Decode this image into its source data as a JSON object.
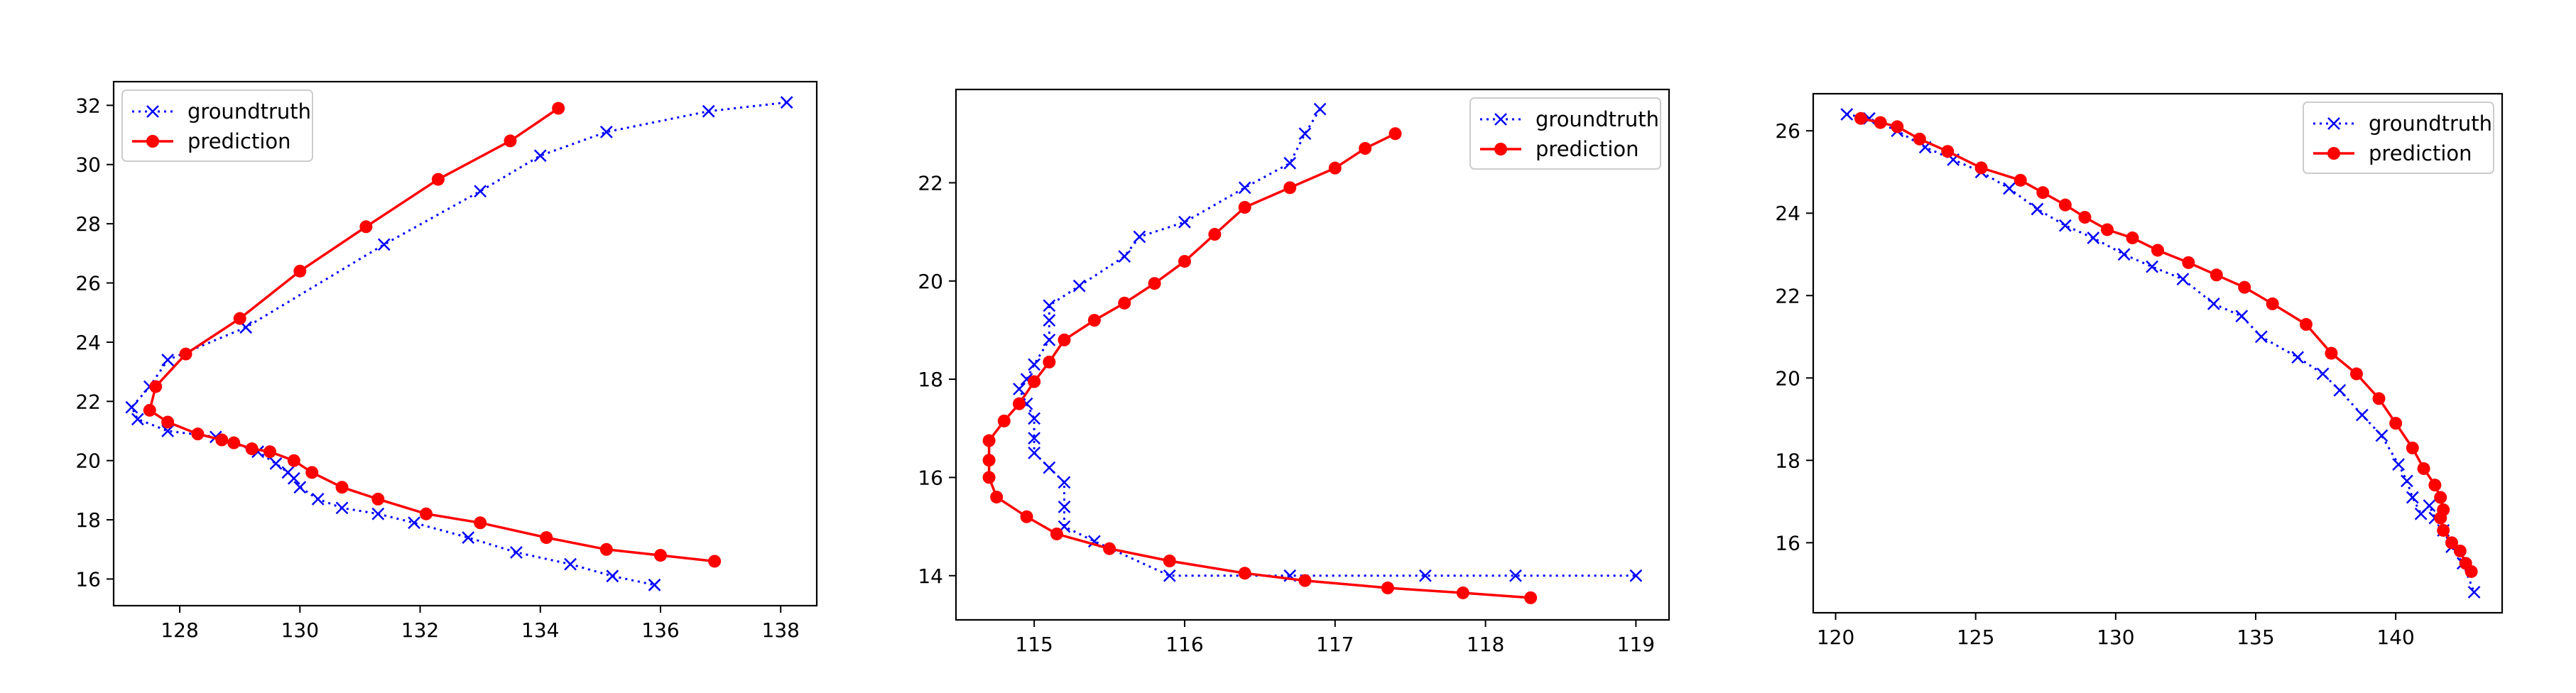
{
  "chart_data": [
    {
      "type": "line",
      "title": "",
      "xlabel": "",
      "ylabel": "",
      "xlim": [
        126.9,
        138.6
      ],
      "ylim": [
        15.1,
        32.8
      ],
      "xticks": [
        128,
        130,
        132,
        134,
        136,
        138
      ],
      "yticks": [
        16,
        18,
        20,
        22,
        24,
        26,
        28,
        30,
        32
      ],
      "grid": false,
      "legend": "top-left",
      "series": [
        {
          "name": "groundtruth",
          "color": "#0000ff",
          "marker": "x",
          "linestyle": "dotted",
          "x": [
            138.1,
            136.8,
            135.1,
            134.0,
            133.0,
            131.4,
            129.1,
            127.8,
            127.5,
            127.2,
            127.3,
            127.8,
            128.6,
            129.3,
            129.6,
            129.8,
            129.9,
            130.0,
            130.3,
            130.7,
            131.3,
            131.9,
            132.8,
            133.6,
            134.5,
            135.2,
            135.9
          ],
          "y": [
            32.1,
            31.8,
            31.1,
            30.3,
            29.1,
            27.3,
            24.5,
            23.4,
            22.5,
            21.8,
            21.4,
            21.0,
            20.8,
            20.3,
            19.9,
            19.6,
            19.4,
            19.1,
            18.7,
            18.4,
            18.2,
            17.9,
            17.4,
            16.9,
            16.5,
            16.1,
            15.8
          ]
        },
        {
          "name": "prediction",
          "color": "#ff0000",
          "marker": "o",
          "linestyle": "solid",
          "x": [
            134.3,
            133.5,
            132.3,
            131.1,
            130.0,
            129.0,
            128.1,
            127.6,
            127.5,
            127.8,
            128.3,
            128.7,
            128.9,
            129.2,
            129.5,
            129.9,
            130.2,
            130.7,
            131.3,
            132.1,
            133.0,
            134.1,
            135.1,
            136.0,
            136.9
          ],
          "y": [
            31.9,
            30.8,
            29.5,
            27.9,
            26.4,
            24.8,
            23.6,
            22.5,
            21.7,
            21.3,
            20.9,
            20.7,
            20.6,
            20.4,
            20.3,
            20.0,
            19.6,
            19.1,
            18.7,
            18.2,
            17.9,
            17.4,
            17.0,
            16.8,
            16.6
          ]
        }
      ]
    },
    {
      "type": "line",
      "title": "",
      "xlabel": "",
      "ylabel": "",
      "xlim": [
        114.48,
        119.22
      ],
      "ylim": [
        13.1,
        23.9
      ],
      "xticks": [
        115,
        116,
        117,
        118,
        119
      ],
      "yticks": [
        14,
        16,
        18,
        20,
        22
      ],
      "grid": false,
      "legend": "top-right",
      "series": [
        {
          "name": "groundtruth",
          "color": "#0000ff",
          "marker": "x",
          "linestyle": "dotted",
          "x": [
            116.9,
            116.8,
            116.7,
            116.4,
            116.0,
            115.7,
            115.6,
            115.3,
            115.1,
            115.1,
            115.1,
            115.0,
            114.95,
            114.9,
            114.95,
            115.0,
            115.0,
            115.0,
            115.1,
            115.2,
            115.2,
            115.2,
            115.4,
            115.9,
            116.7,
            117.6,
            118.2,
            119.0
          ],
          "y": [
            23.5,
            23.0,
            22.4,
            21.9,
            21.2,
            20.9,
            20.5,
            19.9,
            19.5,
            19.2,
            18.8,
            18.3,
            18.0,
            17.8,
            17.5,
            17.2,
            16.8,
            16.5,
            16.2,
            15.9,
            15.4,
            15.0,
            14.7,
            14.0,
            14.0,
            14.0,
            14.0,
            14.0
          ],
          "x_tail_note": ""
        },
        {
          "name": "prediction",
          "color": "#ff0000",
          "marker": "o",
          "linestyle": "solid",
          "x": [
            117.4,
            117.2,
            117.0,
            116.7,
            116.4,
            116.2,
            116.0,
            115.8,
            115.6,
            115.4,
            115.2,
            115.1,
            115.0,
            114.9,
            114.8,
            114.7,
            114.7,
            114.7,
            114.75,
            114.95,
            115.15,
            115.5,
            115.9,
            116.4,
            116.8,
            117.35,
            117.85,
            118.3
          ],
          "y": [
            23.0,
            22.7,
            22.3,
            21.9,
            21.5,
            20.95,
            20.4,
            19.95,
            19.55,
            19.2,
            18.8,
            18.35,
            17.95,
            17.5,
            17.15,
            16.75,
            16.35,
            16.0,
            15.6,
            15.2,
            14.85,
            14.55,
            14.3,
            14.05,
            13.9,
            13.75,
            13.65,
            13.55
          ]
        }
      ]
    },
    {
      "type": "line",
      "title": "",
      "xlabel": "",
      "ylabel": "",
      "xlim": [
        119.2,
        143.8
      ],
      "ylim": [
        14.3,
        26.9
      ],
      "xticks": [
        120,
        125,
        130,
        135,
        140
      ],
      "yticks": [
        16,
        18,
        20,
        22,
        24,
        26
      ],
      "grid": false,
      "legend": "top-right",
      "series": [
        {
          "name": "groundtruth",
          "color": "#0000ff",
          "marker": "x",
          "linestyle": "dotted",
          "x": [
            120.4,
            121.2,
            122.2,
            123.2,
            124.2,
            125.2,
            126.2,
            127.2,
            128.2,
            129.2,
            130.3,
            131.3,
            132.4,
            133.5,
            134.5,
            135.2,
            136.5,
            137.4,
            138.0,
            138.8,
            139.5,
            140.1,
            140.4,
            140.6,
            140.9,
            141.2,
            141.4,
            141.7,
            142.0,
            142.4,
            142.8
          ],
          "y": [
            26.4,
            26.3,
            26.0,
            25.6,
            25.3,
            25.0,
            24.6,
            24.1,
            23.7,
            23.4,
            23.0,
            22.7,
            22.4,
            21.8,
            21.5,
            21.0,
            20.5,
            20.1,
            19.7,
            19.1,
            18.6,
            17.9,
            17.5,
            17.1,
            16.7,
            16.9,
            16.6,
            16.3,
            15.9,
            15.5,
            14.8
          ]
        },
        {
          "name": "prediction",
          "color": "#ff0000",
          "marker": "o",
          "linestyle": "solid",
          "x": [
            120.9,
            121.6,
            122.2,
            123.0,
            124.0,
            125.2,
            126.6,
            127.4,
            128.2,
            128.9,
            129.7,
            130.6,
            131.5,
            132.6,
            133.6,
            134.6,
            135.6,
            136.8,
            137.7,
            138.6,
            139.4,
            140.0,
            140.6,
            141.0,
            141.4,
            141.6,
            141.7,
            141.6,
            141.7,
            142.0,
            142.3,
            142.5,
            142.7
          ],
          "y": [
            26.3,
            26.2,
            26.1,
            25.8,
            25.5,
            25.1,
            24.8,
            24.5,
            24.2,
            23.9,
            23.6,
            23.4,
            23.1,
            22.8,
            22.5,
            22.2,
            21.8,
            21.3,
            20.6,
            20.1,
            19.5,
            18.9,
            18.3,
            17.8,
            17.4,
            17.1,
            16.8,
            16.6,
            16.3,
            16.0,
            15.8,
            15.5,
            15.3
          ]
        }
      ]
    }
  ]
}
